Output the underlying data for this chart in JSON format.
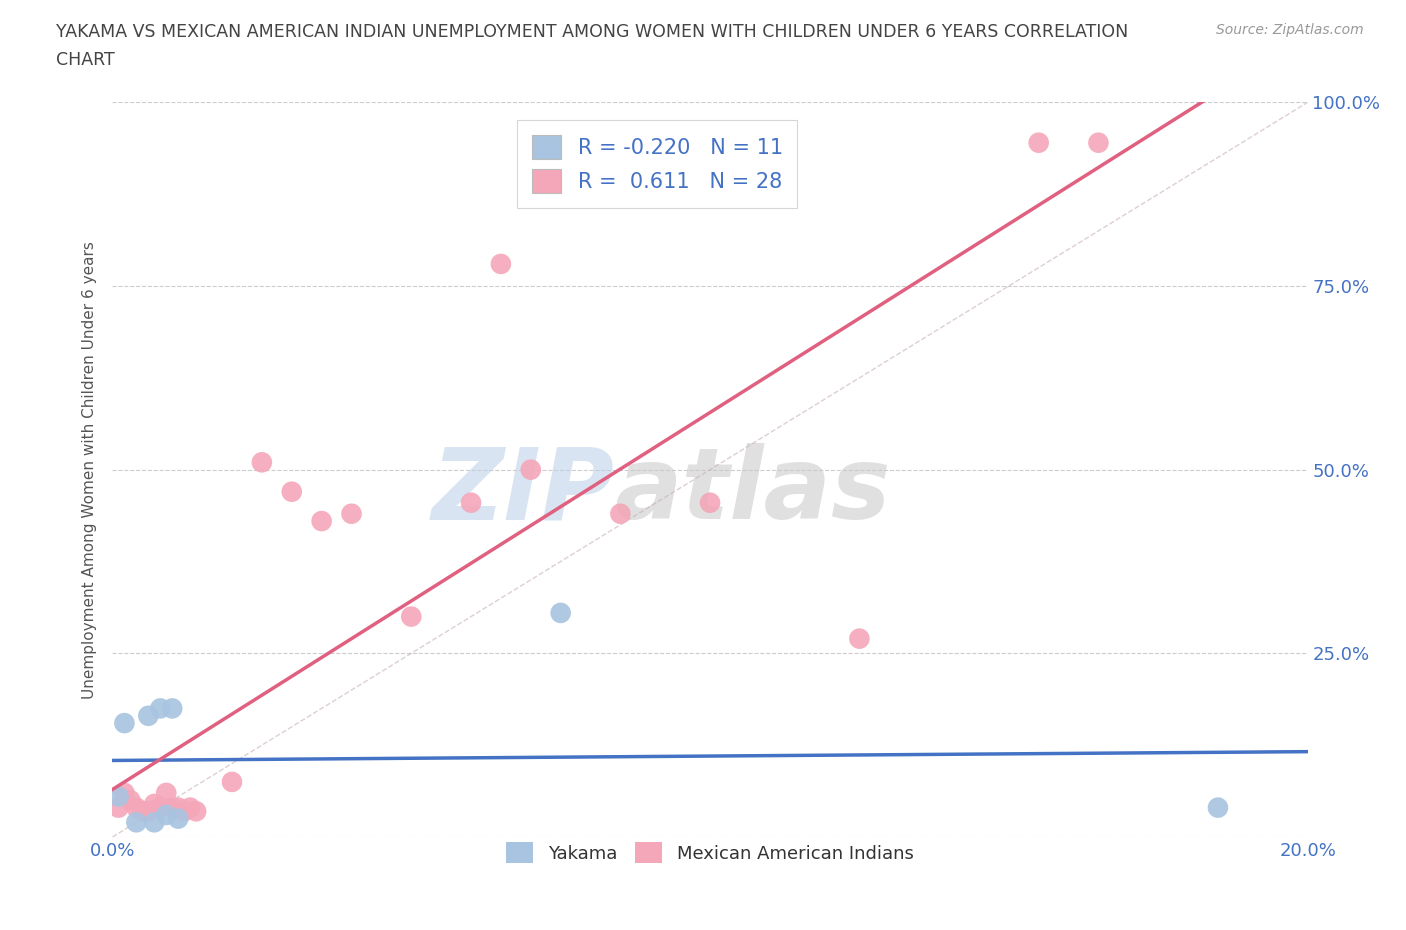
{
  "title_line1": "YAKAMA VS MEXICAN AMERICAN INDIAN UNEMPLOYMENT AMONG WOMEN WITH CHILDREN UNDER 6 YEARS CORRELATION",
  "title_line2": "CHART",
  "source": "Source: ZipAtlas.com",
  "ylabel": "Unemployment Among Women with Children Under 6 years",
  "xlim": [
    0.0,
    0.2
  ],
  "ylim": [
    0.0,
    1.0
  ],
  "xticks": [
    0.0,
    0.05,
    0.1,
    0.15,
    0.2
  ],
  "xtick_labels": [
    "0.0%",
    "",
    "",
    "",
    "20.0%"
  ],
  "yticks": [
    0.0,
    0.25,
    0.5,
    0.75,
    1.0
  ],
  "ytick_labels": [
    "",
    "25.0%",
    "50.0%",
    "75.0%",
    "100.0%"
  ],
  "yakama_x": [
    0.001,
    0.002,
    0.004,
    0.006,
    0.007,
    0.008,
    0.009,
    0.01,
    0.011,
    0.075,
    0.185
  ],
  "yakama_y": [
    0.055,
    0.155,
    0.02,
    0.165,
    0.02,
    0.175,
    0.03,
    0.175,
    0.025,
    0.305,
    0.04
  ],
  "mexican_x": [
    0.001,
    0.002,
    0.003,
    0.004,
    0.005,
    0.006,
    0.007,
    0.008,
    0.009,
    0.01,
    0.011,
    0.012,
    0.013,
    0.014,
    0.02,
    0.025,
    0.03,
    0.035,
    0.04,
    0.05,
    0.06,
    0.065,
    0.07,
    0.085,
    0.1,
    0.125,
    0.155,
    0.165
  ],
  "mexican_y": [
    0.04,
    0.06,
    0.05,
    0.04,
    0.035,
    0.035,
    0.045,
    0.04,
    0.06,
    0.04,
    0.04,
    0.035,
    0.04,
    0.035,
    0.075,
    0.51,
    0.47,
    0.43,
    0.44,
    0.3,
    0.455,
    0.78,
    0.5,
    0.44,
    0.455,
    0.27,
    0.945,
    0.945
  ],
  "yakama_color": "#a8c4e0",
  "mexican_color": "#f4a7b9",
  "yakama_line_color": "#4472C4",
  "mexican_line_color": "#E06080",
  "diagonal_color": "#c8b0b0",
  "R_yakama": -0.22,
  "N_yakama": 11,
  "R_mexican": 0.611,
  "N_mexican": 28,
  "watermark_zip": "ZIP",
  "watermark_atlas": "atlas",
  "background_color": "#ffffff",
  "grid_color": "#cccccc",
  "title_color": "#444444",
  "axis_label_color": "#4472C4",
  "source_color": "#999999"
}
